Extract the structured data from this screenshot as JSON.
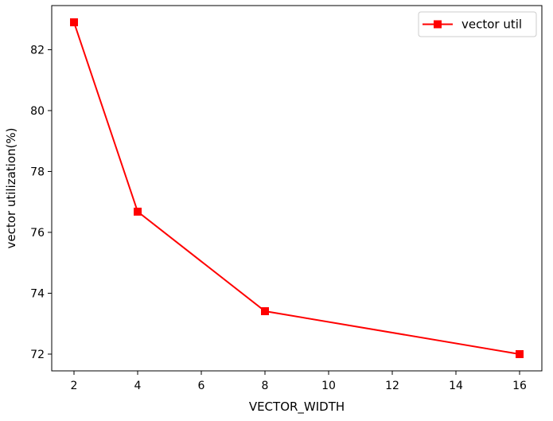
{
  "chart_data": {
    "type": "line",
    "title": "",
    "xlabel": "VECTOR_WIDTH",
    "ylabel": "vector utilization(%)",
    "xlim": [
      1.3,
      16.7
    ],
    "ylim": [
      71.45,
      83.45
    ],
    "xticks": [
      2,
      4,
      6,
      8,
      10,
      12,
      14,
      16
    ],
    "yticks": [
      72,
      74,
      76,
      78,
      80,
      82
    ],
    "grid": false,
    "legend_position": "top-right",
    "series": [
      {
        "name": "vector util",
        "color": "#ff0000",
        "marker": "square",
        "x": [
          2,
          4,
          8,
          16
        ],
        "y": [
          82.9,
          76.68,
          73.41,
          72.0
        ]
      }
    ]
  }
}
